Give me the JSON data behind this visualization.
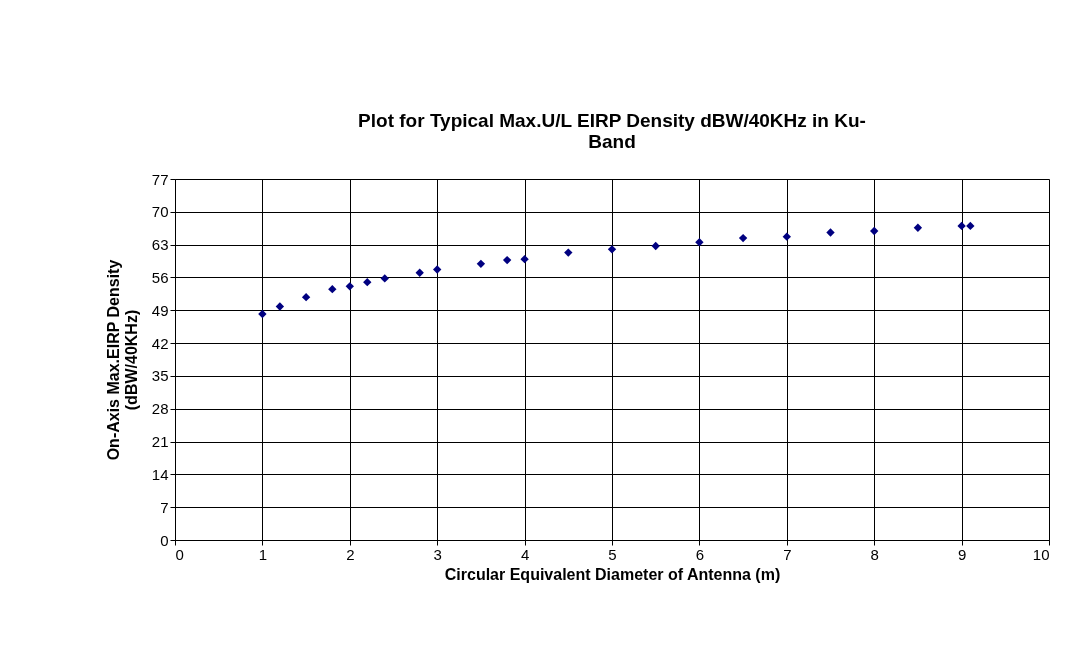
{
  "chart_data": {
    "type": "scatter",
    "title": [
      "Plot for Typical  Max.U/L EIRP Density  dBW/40KHz in Ku-",
      "Band"
    ],
    "xlabel": "Circular Equivalent Diameter of Antenna (m)",
    "ylabel": [
      "On-Axis Max.EIRP Density",
      "(dBW/40KHz)"
    ],
    "x": [
      1.0,
      1.2,
      1.5,
      1.8,
      2.0,
      2.2,
      2.4,
      2.8,
      3.0,
      3.5,
      3.8,
      4.0,
      4.5,
      5.0,
      5.5,
      6.0,
      6.5,
      7.0,
      7.5,
      8.0,
      8.5,
      9.0,
      9.1
    ],
    "series": [
      {
        "color": "#000080",
        "values": [
          48.2,
          49.8,
          51.8,
          53.5,
          54.1,
          55.0,
          55.8,
          57.0,
          57.7,
          58.9,
          59.7,
          59.9,
          61.3,
          62.0,
          62.7,
          63.5,
          64.4,
          64.7,
          65.6,
          65.9,
          66.6,
          67.0,
          67.0
        ]
      }
    ],
    "xlim": [
      0,
      10
    ],
    "xticks": [
      0,
      1,
      2,
      3,
      4,
      5,
      6,
      7,
      8,
      9,
      10
    ],
    "ylim": [
      0,
      77
    ],
    "yticks": [
      0,
      7,
      14,
      21,
      28,
      35,
      42,
      49,
      56,
      63,
      70,
      77
    ],
    "grid": true,
    "marker": "diamond"
  }
}
